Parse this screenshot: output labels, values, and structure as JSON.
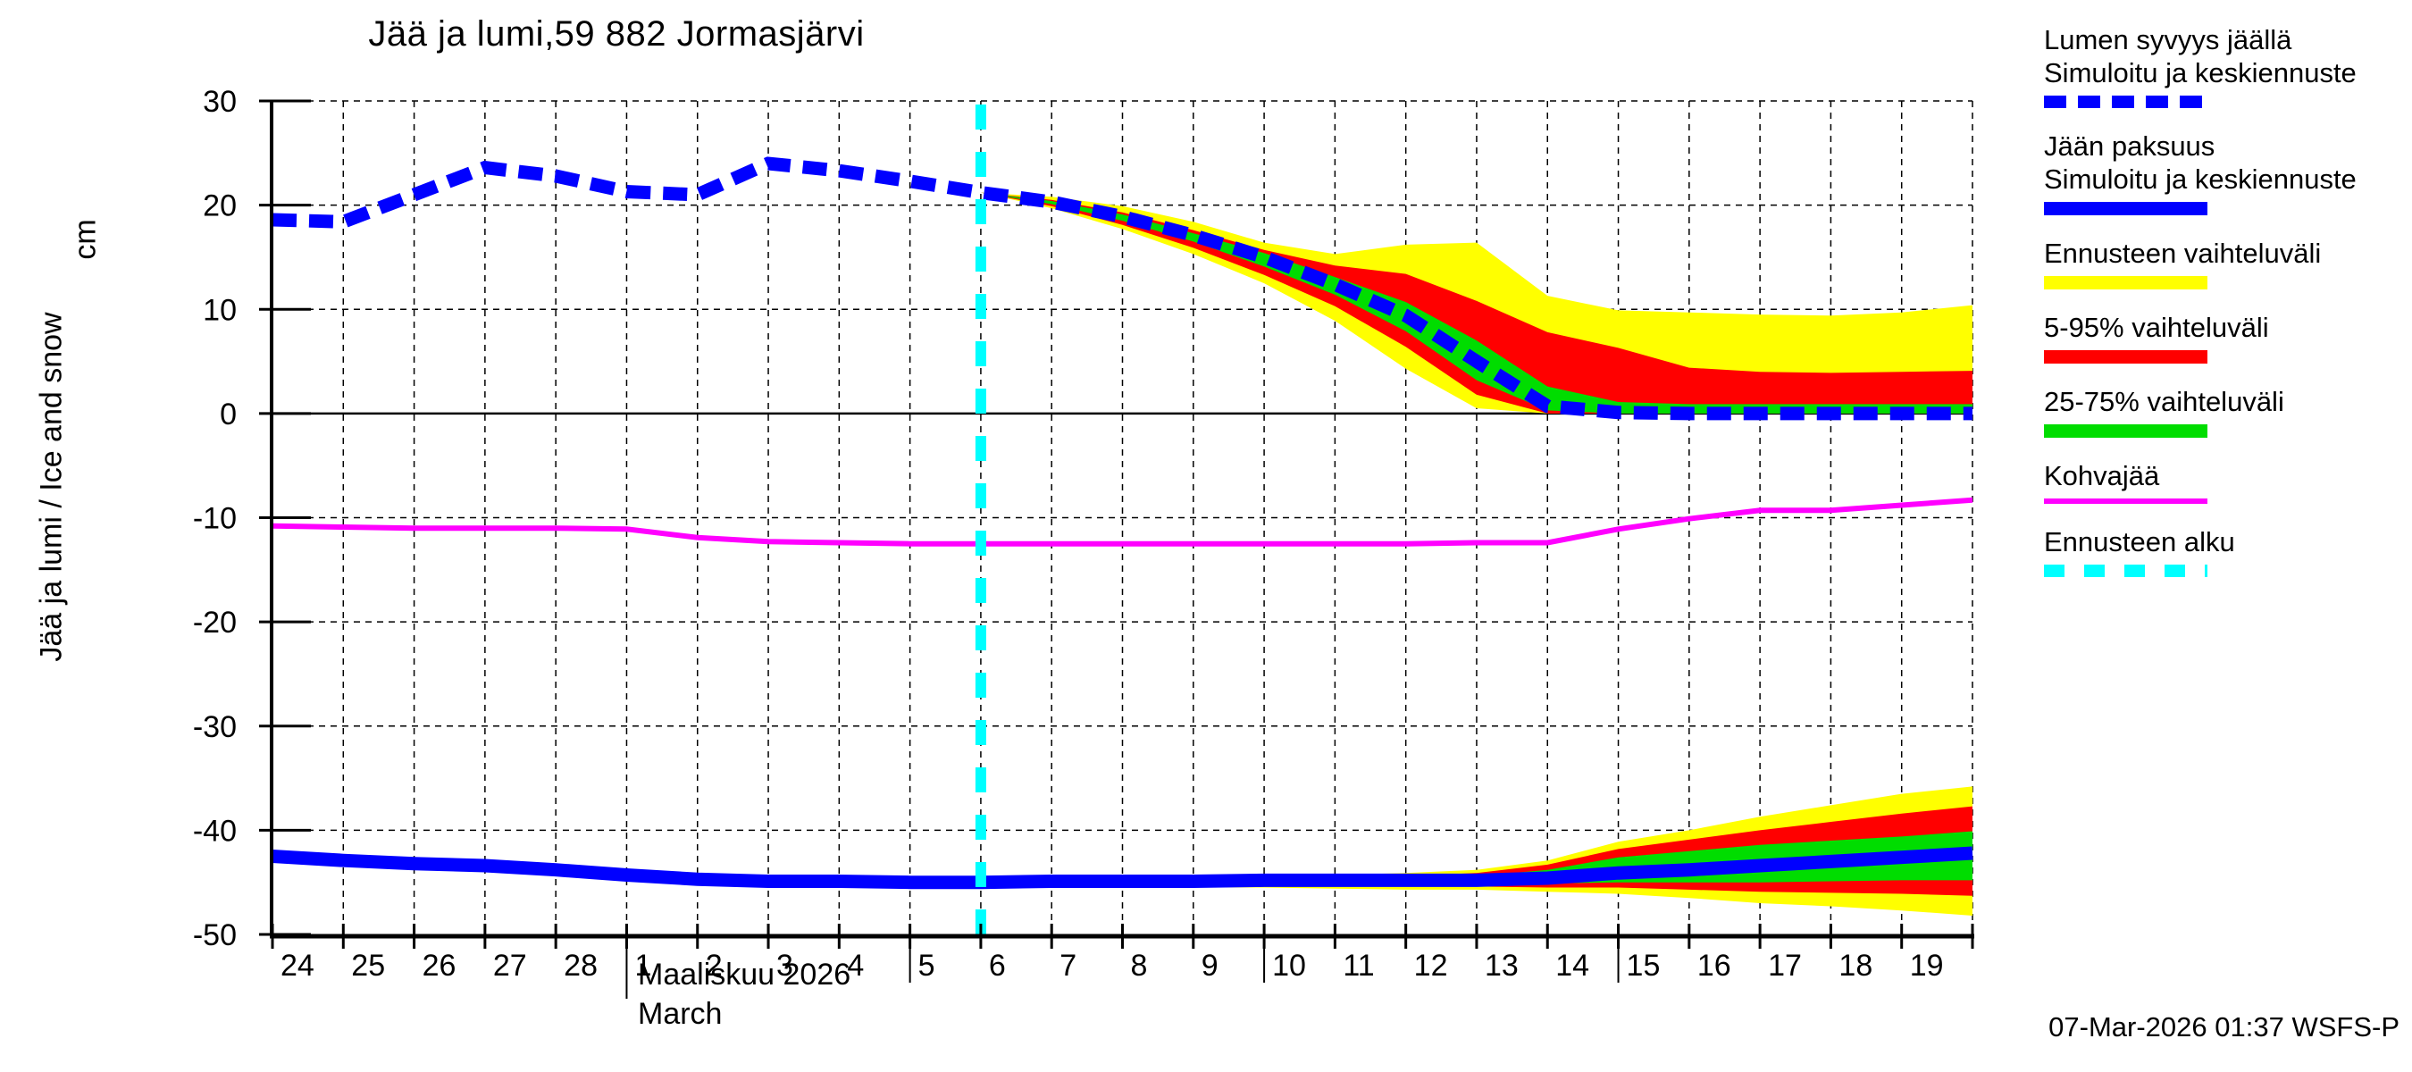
{
  "title": "Jää ja lumi,59 882 Jormasjärvi",
  "y_axis": {
    "label_rotated": "Jää ja lumi / Ice and snow",
    "unit": "cm",
    "ticks": [
      30,
      20,
      10,
      0,
      -10,
      -20,
      -30,
      -40,
      -50
    ]
  },
  "x_axis": {
    "day_labels": [
      "24",
      "25",
      "26",
      "27",
      "28",
      "1",
      "2",
      "3",
      "4",
      "5",
      "6",
      "7",
      "8",
      "9",
      "10",
      "11",
      "12",
      "13",
      "14",
      "15",
      "16",
      "17",
      "18",
      "19"
    ],
    "month_label_fi": "Maaliskuu 2026",
    "month_label_en": "March",
    "month_separator_index": 5,
    "long_tick_indices": [
      9,
      14,
      19
    ]
  },
  "footer": {
    "timestamp": "07-Mar-2026 01:37 WSFS-P"
  },
  "colors": {
    "blue": "#0000ff",
    "yellow": "#ffff00",
    "red": "#ff0000",
    "green": "#00dd00",
    "magenta": "#ff00ff",
    "cyan": "#00ffff",
    "black": "#000000",
    "background": "#ffffff"
  },
  "legend": {
    "items": [
      {
        "name": "snow-depth-simulated",
        "label_lines": [
          "Lumen syvyys jäällä",
          "Simuloitu ja keskiennuste"
        ],
        "swatch": "blue-dashed"
      },
      {
        "name": "ice-thickness-simulated",
        "label_lines": [
          "Jään paksuus",
          "Simuloitu ja keskiennuste"
        ],
        "swatch": "blue-solid"
      },
      {
        "name": "forecast-range",
        "label_lines": [
          "Ennusteen vaihteluväli"
        ],
        "swatch": "yellow-solid"
      },
      {
        "name": "range-5-95",
        "label_lines": [
          "5-95% vaihteluväli"
        ],
        "swatch": "red-solid"
      },
      {
        "name": "range-25-75",
        "label_lines": [
          "25-75% vaihteluväli"
        ],
        "swatch": "green-solid"
      },
      {
        "name": "slush-ice",
        "label_lines": [
          "Kohvajää"
        ],
        "swatch": "magenta-line"
      },
      {
        "name": "forecast-start",
        "label_lines": [
          "Ennusteen alku"
        ],
        "swatch": "cyan-dashed"
      }
    ]
  },
  "chart_data": {
    "type": "line",
    "title": "Jää ja lumi,59 882 Jormasjärvi",
    "ylabel": "Jää ja lumi / Ice and snow (cm)",
    "ylim": [
      -50,
      30
    ],
    "grid": true,
    "legend_position": "outside-right",
    "x_index_note": "index 0 = 24 Feb 2026, one step per day, index 24 = 20 Mar 2026 (right edge)",
    "forecast_start_index": 10,
    "snow_depth_cm": {
      "x": [
        0,
        1,
        2,
        3,
        4,
        5,
        6,
        7,
        8,
        9,
        10,
        11,
        12,
        13,
        14,
        15,
        16,
        17,
        18,
        19,
        20,
        21,
        22,
        23,
        24
      ],
      "median": [
        18.6,
        18.4,
        21.0,
        23.6,
        22.8,
        21.3,
        21.0,
        24.0,
        23.3,
        22.3,
        21.2,
        20.3,
        18.9,
        17.1,
        15.0,
        12.4,
        9.4,
        5.0,
        0.7,
        0.1,
        0.0,
        0.0,
        0.0,
        0.0,
        0.0
      ],
      "bands": {
        "x": [
          10,
          11,
          12,
          13,
          14,
          15,
          16,
          17,
          18,
          19,
          20,
          21,
          22,
          23,
          24
        ],
        "yellow_top": [
          21.2,
          20.8,
          19.9,
          18.4,
          16.4,
          15.3,
          16.2,
          16.4,
          11.3,
          9.9,
          9.7,
          9.5,
          9.4,
          9.7,
          10.4
        ],
        "red_top": [
          21.2,
          20.5,
          19.3,
          17.6,
          15.7,
          14.2,
          13.4,
          10.8,
          7.8,
          6.3,
          4.4,
          4.0,
          3.9,
          4.0,
          4.1
        ],
        "green_top": [
          21.2,
          20.4,
          19.1,
          17.3,
          15.4,
          13.1,
          10.7,
          7.0,
          2.6,
          1.1,
          0.9,
          0.9,
          0.9,
          0.9,
          0.9
        ],
        "green_bottom": [
          21.2,
          20.1,
          18.5,
          16.5,
          14.1,
          11.4,
          7.9,
          3.2,
          0.3,
          0.0,
          0.0,
          0.0,
          0.0,
          0.0,
          0.0
        ],
        "red_bottom": [
          21.2,
          19.9,
          18.1,
          15.9,
          13.3,
          10.3,
          6.4,
          1.8,
          0.0,
          0.0,
          0.0,
          0.0,
          0.0,
          0.0,
          0.0
        ],
        "yellow_bottom": [
          21.2,
          19.7,
          17.7,
          15.3,
          12.5,
          8.9,
          4.3,
          0.5,
          0.0,
          0.0,
          0.0,
          0.0,
          0.0,
          0.0,
          0.0
        ]
      }
    },
    "ice_thickness_cm": {
      "x": [
        0,
        1,
        2,
        3,
        4,
        5,
        6,
        7,
        8,
        9,
        10,
        11,
        12,
        13,
        14,
        15,
        16,
        17,
        18,
        19,
        20,
        21,
        22,
        23,
        24
      ],
      "median": [
        -42.5,
        -42.9,
        -43.2,
        -43.4,
        -43.8,
        -44.3,
        -44.7,
        -44.9,
        -44.9,
        -45.0,
        -45.0,
        -44.9,
        -44.9,
        -44.9,
        -44.8,
        -44.8,
        -44.8,
        -44.8,
        -44.6,
        -44.1,
        -43.8,
        -43.4,
        -43.0,
        -42.6,
        -42.2
      ],
      "bands": {
        "x": [
          10,
          11,
          12,
          13,
          14,
          15,
          16,
          17,
          18,
          19,
          20,
          21,
          22,
          23,
          24
        ],
        "yellow_top": [
          -44.7,
          -44.6,
          -44.6,
          -44.5,
          -44.4,
          -44.3,
          -44.1,
          -43.8,
          -42.9,
          -41.1,
          -40.0,
          -38.7,
          -37.6,
          -36.5,
          -35.8
        ],
        "red_top": [
          -44.8,
          -44.7,
          -44.7,
          -44.6,
          -44.6,
          -44.5,
          -44.4,
          -44.1,
          -43.3,
          -41.8,
          -40.9,
          -40.0,
          -39.2,
          -38.4,
          -37.7
        ],
        "green_top": [
          -44.9,
          -44.8,
          -44.8,
          -44.8,
          -44.7,
          -44.7,
          -44.6,
          -44.4,
          -43.8,
          -42.6,
          -42.0,
          -41.4,
          -41.0,
          -40.6,
          -40.1
        ],
        "green_bottom": [
          -45.1,
          -45.1,
          -45.1,
          -45.1,
          -45.1,
          -45.1,
          -45.1,
          -45.1,
          -45.1,
          -45.0,
          -45.0,
          -45.0,
          -44.9,
          -44.8,
          -44.8
        ],
        "red_bottom": [
          -45.2,
          -45.2,
          -45.3,
          -45.3,
          -45.3,
          -45.4,
          -45.4,
          -45.4,
          -45.5,
          -45.5,
          -45.7,
          -45.9,
          -46.0,
          -46.1,
          -46.3
        ],
        "yellow_bottom": [
          -45.3,
          -45.4,
          -45.4,
          -45.5,
          -45.5,
          -45.6,
          -45.7,
          -45.7,
          -45.9,
          -46.1,
          -46.5,
          -47.0,
          -47.3,
          -47.7,
          -48.2
        ]
      }
    },
    "slush_ice_cm": {
      "x": [
        0,
        1,
        2,
        3,
        4,
        5,
        6,
        7,
        8,
        9,
        10,
        11,
        12,
        13,
        14,
        15,
        16,
        17,
        18,
        19,
        20,
        21,
        22,
        23,
        24
      ],
      "values": [
        -10.8,
        -10.9,
        -11.0,
        -11.0,
        -11.0,
        -11.1,
        -11.9,
        -12.3,
        -12.4,
        -12.5,
        -12.5,
        -12.5,
        -12.5,
        -12.5,
        -12.5,
        -12.5,
        -12.5,
        -12.4,
        -12.4,
        -11.1,
        -10.1,
        -9.3,
        -9.3,
        -8.8,
        -8.3
      ]
    }
  }
}
